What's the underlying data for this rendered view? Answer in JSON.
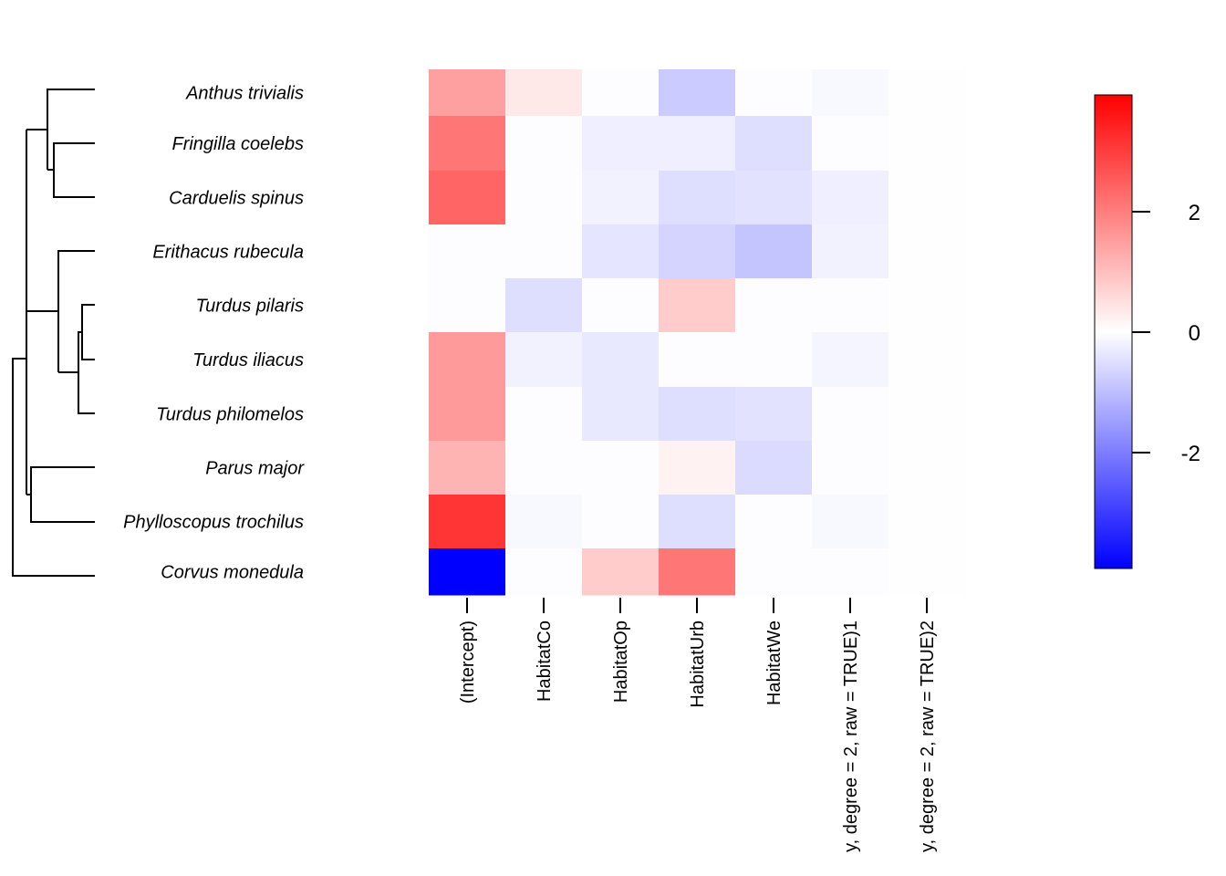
{
  "chart_data": {
    "type": "heatmap",
    "title": "",
    "rows": [
      "Anthus trivialis",
      "Fringilla coelebs",
      "Carduelis spinus",
      "Erithacus rubecula",
      "Turdus pilaris",
      "Turdus iliacus",
      "Turdus philomelos",
      "Parus major",
      "Phylloscopus trochilus",
      "Corvus monedula"
    ],
    "columns": [
      "(Intercept)",
      "HabitatCo",
      "HabitatOp",
      "HabitatUrb",
      "HabitatWe",
      "y, degree = 2, raw = TRUE)1",
      "y, degree = 2, raw = TRUE)2"
    ],
    "values": [
      [
        1.45,
        0.35,
        -0.03,
        -0.8,
        -0.03,
        -0.1,
        -0.02
      ],
      [
        2.1,
        -0.03,
        -0.25,
        -0.25,
        -0.5,
        -0.03,
        -0.02
      ],
      [
        2.35,
        -0.03,
        -0.2,
        -0.5,
        -0.45,
        -0.25,
        -0.02
      ],
      [
        -0.03,
        -0.03,
        -0.4,
        -0.65,
        -0.9,
        -0.2,
        0.02
      ],
      [
        -0.03,
        -0.5,
        -0.03,
        0.8,
        -0.03,
        -0.03,
        -0.02
      ],
      [
        1.55,
        -0.2,
        -0.35,
        -0.03,
        -0.03,
        -0.15,
        0.02
      ],
      [
        1.55,
        -0.03,
        -0.35,
        -0.5,
        -0.45,
        -0.03,
        -0.02
      ],
      [
        1.15,
        -0.03,
        -0.03,
        0.2,
        -0.55,
        -0.03,
        -0.02
      ],
      [
        3.1,
        -0.1,
        -0.03,
        -0.5,
        -0.03,
        -0.1,
        0.02
      ],
      [
        -3.9,
        -0.03,
        0.8,
        2.1,
        -0.03,
        -0.03,
        -0.02
      ]
    ],
    "color_scale": {
      "min": -3.9,
      "max": 3.9,
      "low": "#0000ff",
      "mid": "#ffffff",
      "high": "#ff0000"
    },
    "colorbar_ticks": [
      "2",
      "0",
      "-2"
    ],
    "colorbar_tick_values": [
      2,
      0,
      -2
    ],
    "dendrogram": "rows clustered"
  }
}
